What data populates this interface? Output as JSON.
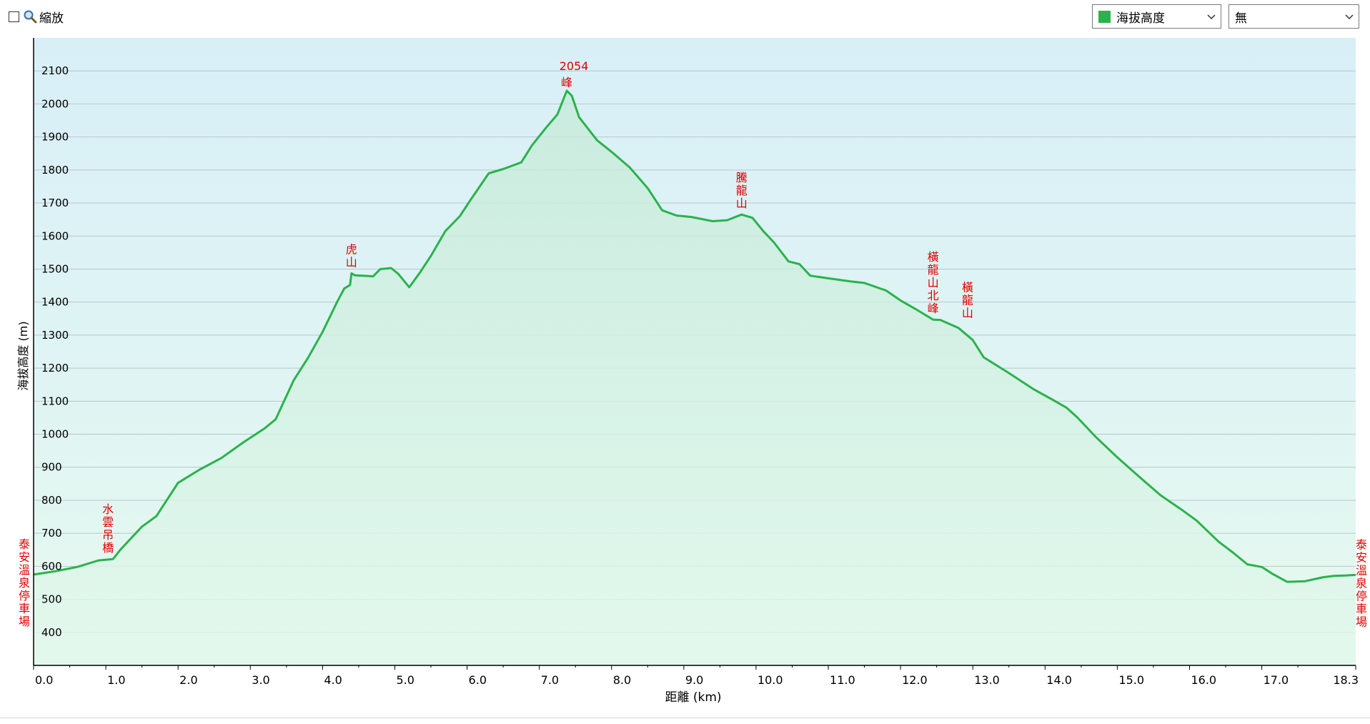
{
  "toolbar": {
    "zoom_label": "縮放",
    "series_select": "海拔高度",
    "compare_select": "無"
  },
  "colors": {
    "line": "#2bb24c",
    "annotation": "#e00000",
    "plot_top": "#d8eff8",
    "plot_bottom": "#e6f9ef"
  },
  "chart_data": {
    "type": "area",
    "title": "",
    "xlabel": "距離 (km)",
    "ylabel": "海拔高度 (m)",
    "xlim": [
      0,
      18.3
    ],
    "ylim": [
      300,
      2200
    ],
    "grid": true,
    "x_ticks": [
      "0.0",
      "1.0",
      "2.0",
      "3.0",
      "4.0",
      "5.0",
      "6.0",
      "7.0",
      "8.0",
      "9.0",
      "10.0",
      "11.0",
      "12.0",
      "13.0",
      "14.0",
      "15.0",
      "16.0",
      "17.0",
      "18.3"
    ],
    "y_ticks": [
      "400",
      "500",
      "600",
      "700",
      "800",
      "900",
      "1000",
      "1100",
      "1200",
      "1300",
      "1400",
      "1500",
      "1600",
      "1700",
      "1800",
      "1900",
      "2000",
      "2100"
    ],
    "series": [
      {
        "name": "海拔高度",
        "points": [
          [
            0.0,
            575
          ],
          [
            0.3,
            585
          ],
          [
            0.6,
            598
          ],
          [
            0.9,
            618
          ],
          [
            1.1,
            622
          ],
          [
            1.2,
            650
          ],
          [
            1.5,
            720
          ],
          [
            1.7,
            752
          ],
          [
            2.0,
            853
          ],
          [
            2.3,
            893
          ],
          [
            2.6,
            928
          ],
          [
            2.9,
            975
          ],
          [
            3.2,
            1018
          ],
          [
            3.35,
            1045
          ],
          [
            3.6,
            1163
          ],
          [
            3.8,
            1232
          ],
          [
            4.0,
            1310
          ],
          [
            4.2,
            1400
          ],
          [
            4.3,
            1441
          ],
          [
            4.38,
            1452
          ],
          [
            4.4,
            1487
          ],
          [
            4.45,
            1481
          ],
          [
            4.55,
            1480
          ],
          [
            4.7,
            1478
          ],
          [
            4.8,
            1500
          ],
          [
            4.95,
            1503
          ],
          [
            5.05,
            1485
          ],
          [
            5.2,
            1445
          ],
          [
            5.35,
            1490
          ],
          [
            5.5,
            1540
          ],
          [
            5.7,
            1615
          ],
          [
            5.9,
            1660
          ],
          [
            6.05,
            1710
          ],
          [
            6.3,
            1790
          ],
          [
            6.5,
            1803
          ],
          [
            6.75,
            1823
          ],
          [
            6.9,
            1875
          ],
          [
            7.1,
            1930
          ],
          [
            7.25,
            1968
          ],
          [
            7.38,
            2040
          ],
          [
            7.45,
            2025
          ],
          [
            7.55,
            1960
          ],
          [
            7.8,
            1890
          ],
          [
            8.0,
            1855
          ],
          [
            8.25,
            1808
          ],
          [
            8.5,
            1745
          ],
          [
            8.7,
            1678
          ],
          [
            8.9,
            1662
          ],
          [
            9.1,
            1658
          ],
          [
            9.4,
            1645
          ],
          [
            9.6,
            1648
          ],
          [
            9.8,
            1665
          ],
          [
            9.95,
            1655
          ],
          [
            10.1,
            1615
          ],
          [
            10.25,
            1580
          ],
          [
            10.45,
            1523
          ],
          [
            10.6,
            1515
          ],
          [
            10.75,
            1480
          ],
          [
            11.0,
            1472
          ],
          [
            11.3,
            1463
          ],
          [
            11.5,
            1458
          ],
          [
            11.8,
            1435
          ],
          [
            12.0,
            1405
          ],
          [
            12.2,
            1380
          ],
          [
            12.45,
            1347
          ],
          [
            12.55,
            1346
          ],
          [
            12.8,
            1322
          ],
          [
            13.0,
            1285
          ],
          [
            13.15,
            1233
          ],
          [
            13.5,
            1185
          ],
          [
            13.85,
            1135
          ],
          [
            14.1,
            1105
          ],
          [
            14.3,
            1080
          ],
          [
            14.45,
            1050
          ],
          [
            14.7,
            992
          ],
          [
            15.0,
            930
          ],
          [
            15.3,
            872
          ],
          [
            15.6,
            815
          ],
          [
            15.9,
            770
          ],
          [
            16.1,
            738
          ],
          [
            16.4,
            675
          ],
          [
            16.6,
            642
          ],
          [
            16.8,
            606
          ],
          [
            17.0,
            598
          ],
          [
            17.15,
            577
          ],
          [
            17.35,
            553
          ],
          [
            17.6,
            555
          ],
          [
            17.85,
            567
          ],
          [
            18.0,
            571
          ],
          [
            18.15,
            572
          ],
          [
            18.3,
            574
          ]
        ]
      }
    ],
    "annotations": [
      {
        "text": "泰安溫泉停車場",
        "x": 0.0,
        "y": 575,
        "vertical": true
      },
      {
        "text": "水雲吊橋",
        "x": 1.03,
        "y": 622,
        "vertical": true
      },
      {
        "text": "虎山",
        "x": 4.4,
        "y": 1487,
        "vertical": true
      },
      {
        "text": "2054",
        "x": 7.38,
        "y": 2040,
        "vertical": false
      },
      {
        "text": "峰",
        "x": 7.38,
        "y": 2040,
        "vertical": true
      },
      {
        "text": "騰龍山",
        "x": 9.8,
        "y": 1665,
        "vertical": true
      },
      {
        "text": "橫龍山北峰",
        "x": 12.45,
        "y": 1347,
        "vertical": true
      },
      {
        "text": "橫龍山",
        "x": 12.65,
        "y": 1333,
        "vertical": true
      },
      {
        "text": "泰安溫泉停車場",
        "x": 18.3,
        "y": 574,
        "vertical": true
      }
    ]
  }
}
